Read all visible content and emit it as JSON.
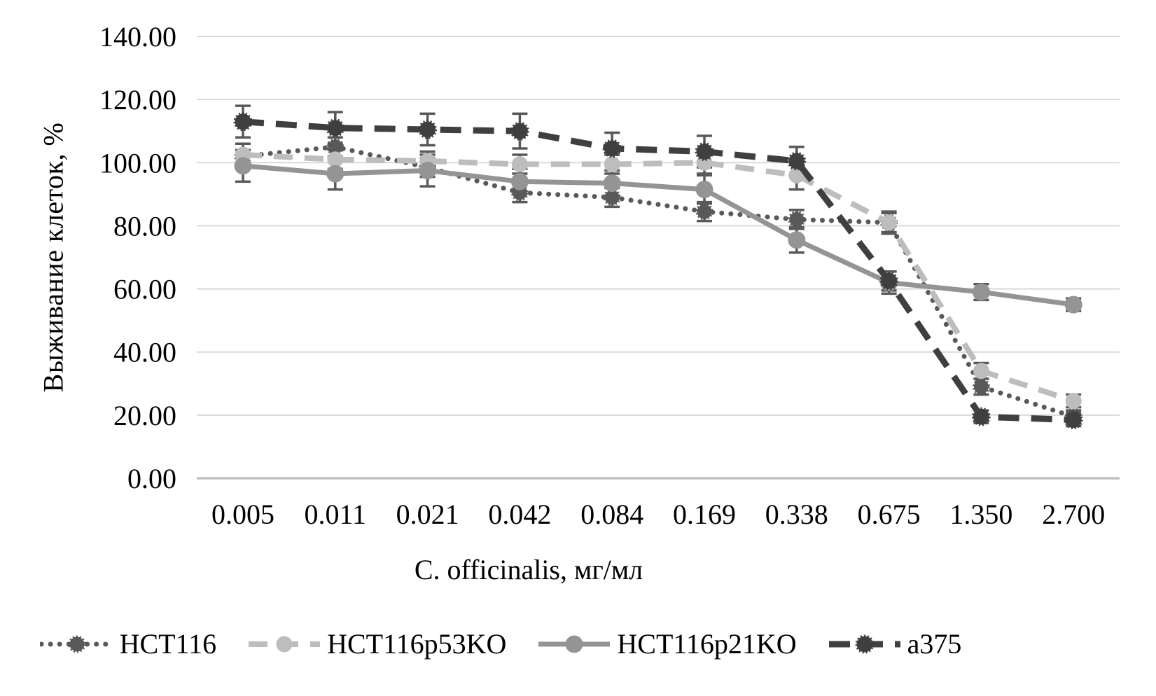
{
  "chart_data": {
    "type": "line",
    "title": "",
    "xlabel": "C. officinalis, мг/мл",
    "ylabel": "Выживание клеток, %",
    "x_categories": [
      "0.005",
      "0.011",
      "0.021",
      "0.042",
      "0.084",
      "0.169",
      "0.338",
      "0.675",
      "1.350",
      "2.700"
    ],
    "y_tick_labels": [
      "0.00",
      "20.00",
      "40.00",
      "60.00",
      "80.00",
      "100.00",
      "120.00",
      "140.00"
    ],
    "ylim": [
      0,
      140
    ],
    "y_step": 20,
    "grid": "horizontal",
    "legend_position": "bottom",
    "error_bars": true,
    "series": [
      {
        "name": "HCT116",
        "color": "#595959",
        "line": "dotted",
        "marker": "fuzzy-circle",
        "values": [
          102,
          105,
          98.5,
          90.5,
          89,
          84.5,
          82,
          81,
          29,
          19.5
        ],
        "errors": [
          4,
          3,
          3,
          3,
          3,
          3,
          3,
          3,
          2.5,
          2
        ]
      },
      {
        "name": "HCT116p53KO",
        "color": "#bdbdbd",
        "line": "dashed",
        "marker": "circle",
        "values": [
          102.5,
          101,
          100.5,
          99.5,
          99.5,
          100,
          96,
          81,
          34,
          24.5
        ],
        "errors": [
          3.5,
          3,
          3,
          3,
          3,
          3.5,
          4.5,
          3.5,
          2.5,
          2
        ]
      },
      {
        "name": "HCT116p21KO",
        "color": "#949494",
        "line": "solid",
        "marker": "circle",
        "values": [
          99,
          96.5,
          97.5,
          94,
          93.5,
          91.5,
          75.5,
          62,
          59,
          55
        ],
        "errors": [
          5,
          5,
          5,
          4,
          4,
          4.5,
          4,
          3.5,
          2.5,
          2
        ]
      },
      {
        "name": "a375",
        "color": "#3f3f3f",
        "line": "long-dash",
        "marker": "fuzzy-circle",
        "values": [
          113,
          111,
          110.5,
          110,
          104.5,
          103.5,
          100.5,
          62.5,
          19.5,
          18.5
        ],
        "errors": [
          5,
          5,
          5,
          5.5,
          5,
          5,
          4.5,
          3,
          2,
          2
        ]
      }
    ],
    "colors": {
      "gridline": "#d9d9d9",
      "axis_line": "#c0c0c0",
      "error_bar": "#595959",
      "text": "#000000",
      "background": "#ffffff"
    }
  }
}
